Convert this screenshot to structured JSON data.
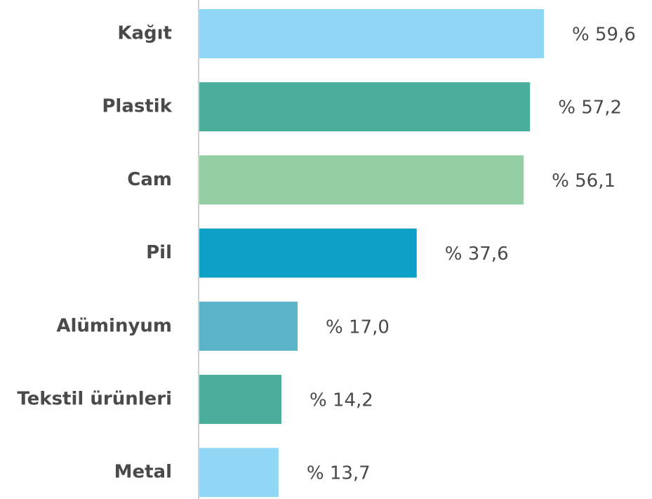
{
  "chart_data": {
    "type": "barh",
    "categories": [
      "Kağıt",
      "Plastik",
      "Cam",
      "Pil",
      "Alüminyum",
      "Tekstil ürünleri",
      "Metal"
    ],
    "values": [
      59.6,
      57.2,
      56.1,
      37.6,
      17.0,
      14.2,
      13.7
    ],
    "value_labels": [
      "% 59,6",
      "% 57,2",
      "% 56,1",
      "% 37,6",
      "% 17,0",
      "% 14,2",
      "% 13,7"
    ],
    "colors": [
      "#8fd7f5",
      "#4bae9a",
      "#93cfa3",
      "#0da1c6",
      "#5bb3c8",
      "#4bae9a",
      "#8fd7f5"
    ]
  }
}
